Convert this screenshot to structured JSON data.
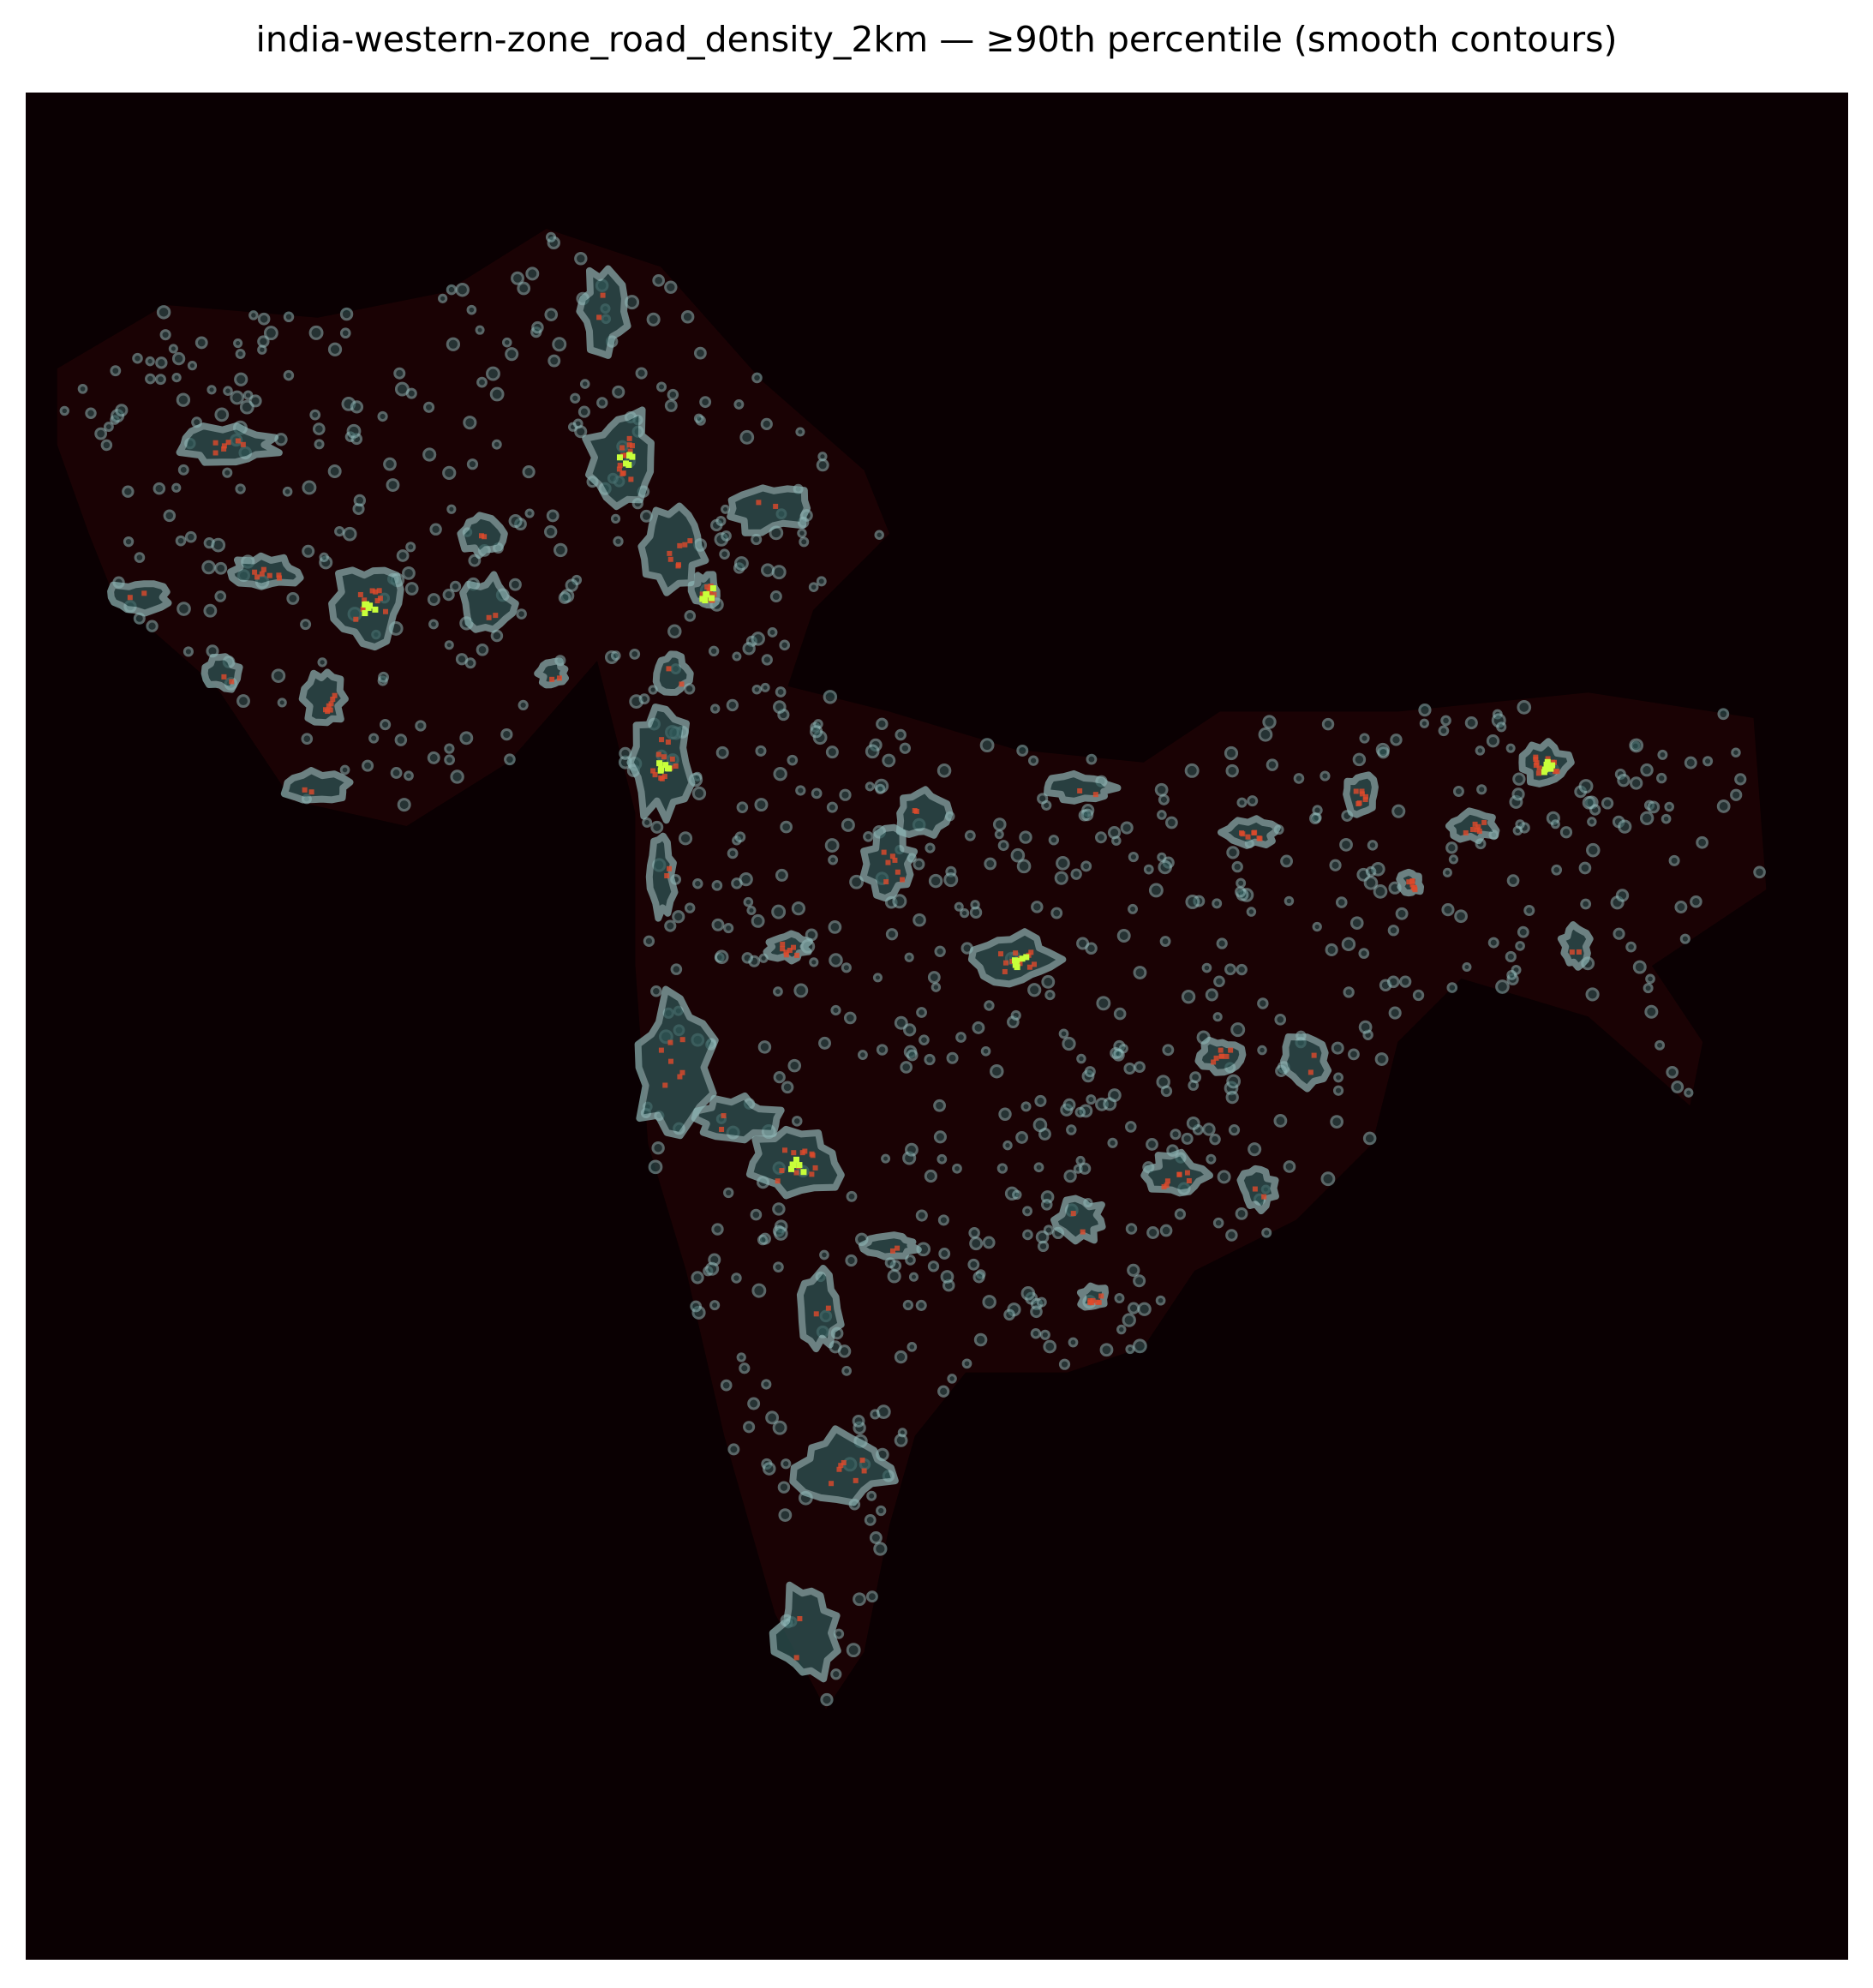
{
  "title": "india-western-zone_road_density_2km — ≥90th percentile (smooth contours)",
  "map": {
    "type": "heatmap",
    "threshold_percentile": 90,
    "colors": {
      "background": "#0a0002",
      "low_density": "#3a0608",
      "contour_fill": "#2f5a5a",
      "contour_edge": "#8fb8b8",
      "hotspot_mid": "#e04a2a",
      "hotspot_high": "#c8ff3a"
    },
    "axes_visible": false
  }
}
